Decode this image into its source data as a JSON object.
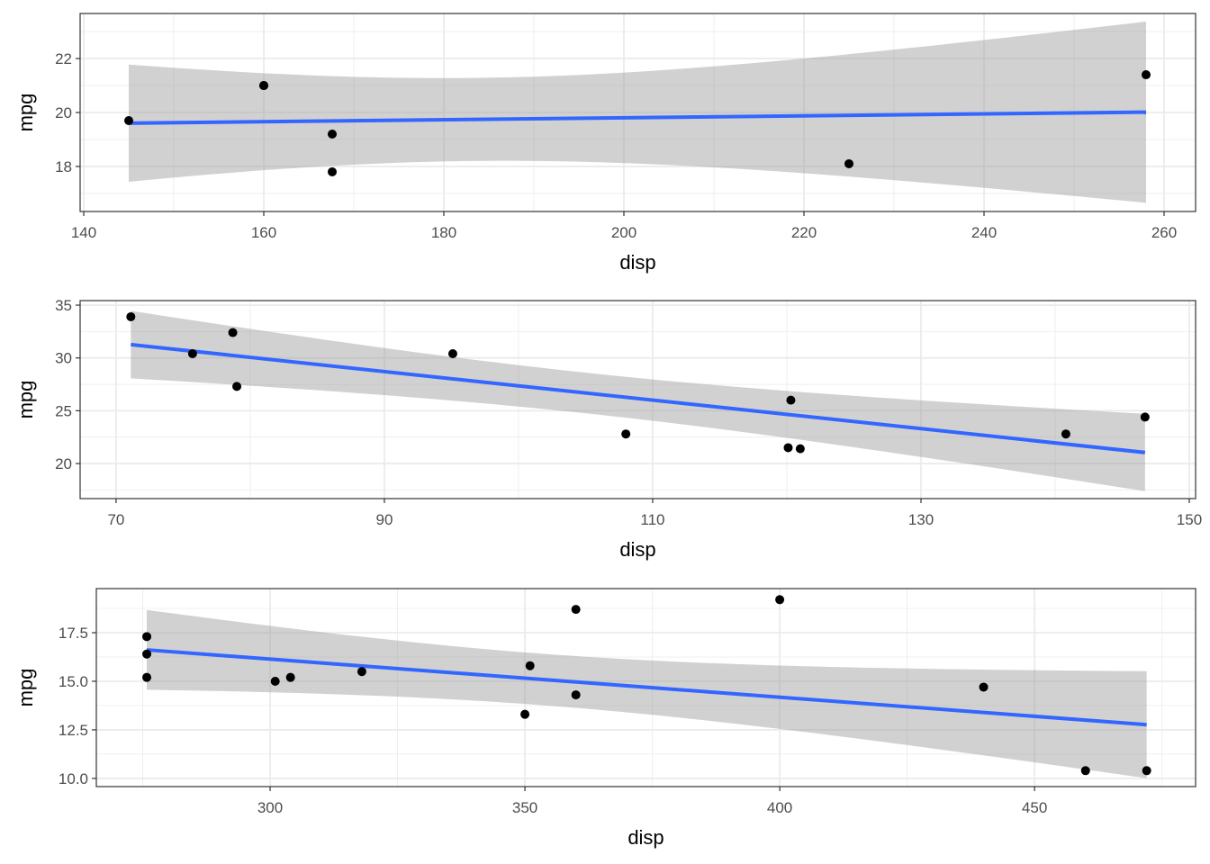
{
  "colors": {
    "line": "#3366FF",
    "band": "#999999",
    "point": "#000000",
    "grid": "#EBEBEB",
    "frame": "#333333"
  },
  "chart_data": [
    {
      "type": "scatter",
      "xlabel": "disp",
      "ylabel": "mpg",
      "xlim": [
        139.6,
        263.5
      ],
      "ylim": [
        16.33,
        23.67
      ],
      "xticks": [
        140,
        160,
        180,
        200,
        220,
        240,
        260
      ],
      "yticks": [
        18,
        20,
        22
      ],
      "ytick_labels": [
        "18",
        "20",
        "22"
      ],
      "t_crit": 2.571,
      "x": [
        160,
        160,
        258,
        225,
        167.6,
        167.6,
        145
      ],
      "y": [
        21,
        21,
        21.4,
        18.1,
        19.2,
        17.8,
        19.7
      ]
    },
    {
      "type": "scatter",
      "xlabel": "disp",
      "ylabel": "mpg",
      "xlim": [
        67.32,
        150.47
      ],
      "ylim": [
        16.68,
        35.43
      ],
      "xticks": [
        70,
        90,
        110,
        130,
        150
      ],
      "yticks": [
        20,
        25,
        30,
        35
      ],
      "ytick_labels": [
        "20",
        "25",
        "30",
        "35"
      ],
      "t_crit": 2.262,
      "x": [
        108,
        146.7,
        140.8,
        78.7,
        75.7,
        71.1,
        120.1,
        79,
        120.3,
        95.1,
        121
      ],
      "y": [
        22.8,
        24.4,
        22.8,
        32.4,
        30.4,
        33.9,
        21.5,
        27.3,
        26,
        30.4,
        21.4
      ]
    },
    {
      "type": "scatter",
      "xlabel": "disp",
      "ylabel": "mpg",
      "xlim": [
        265.9,
        481.6
      ],
      "ylim": [
        9.58,
        19.77
      ],
      "xticks": [
        300,
        350,
        400,
        450
      ],
      "yticks": [
        10,
        12.5,
        15,
        17.5
      ],
      "ytick_labels": [
        "10.0",
        "12.5",
        "15.0",
        "17.5"
      ],
      "t_crit": 2.179,
      "x": [
        360,
        360,
        275.8,
        275.8,
        275.8,
        472,
        460,
        440,
        318,
        304,
        350,
        400,
        351,
        301
      ],
      "y": [
        18.7,
        14.3,
        16.4,
        17.3,
        15.2,
        10.4,
        10.4,
        14.7,
        15.5,
        15.2,
        13.3,
        19.2,
        15.8,
        15
      ]
    }
  ]
}
